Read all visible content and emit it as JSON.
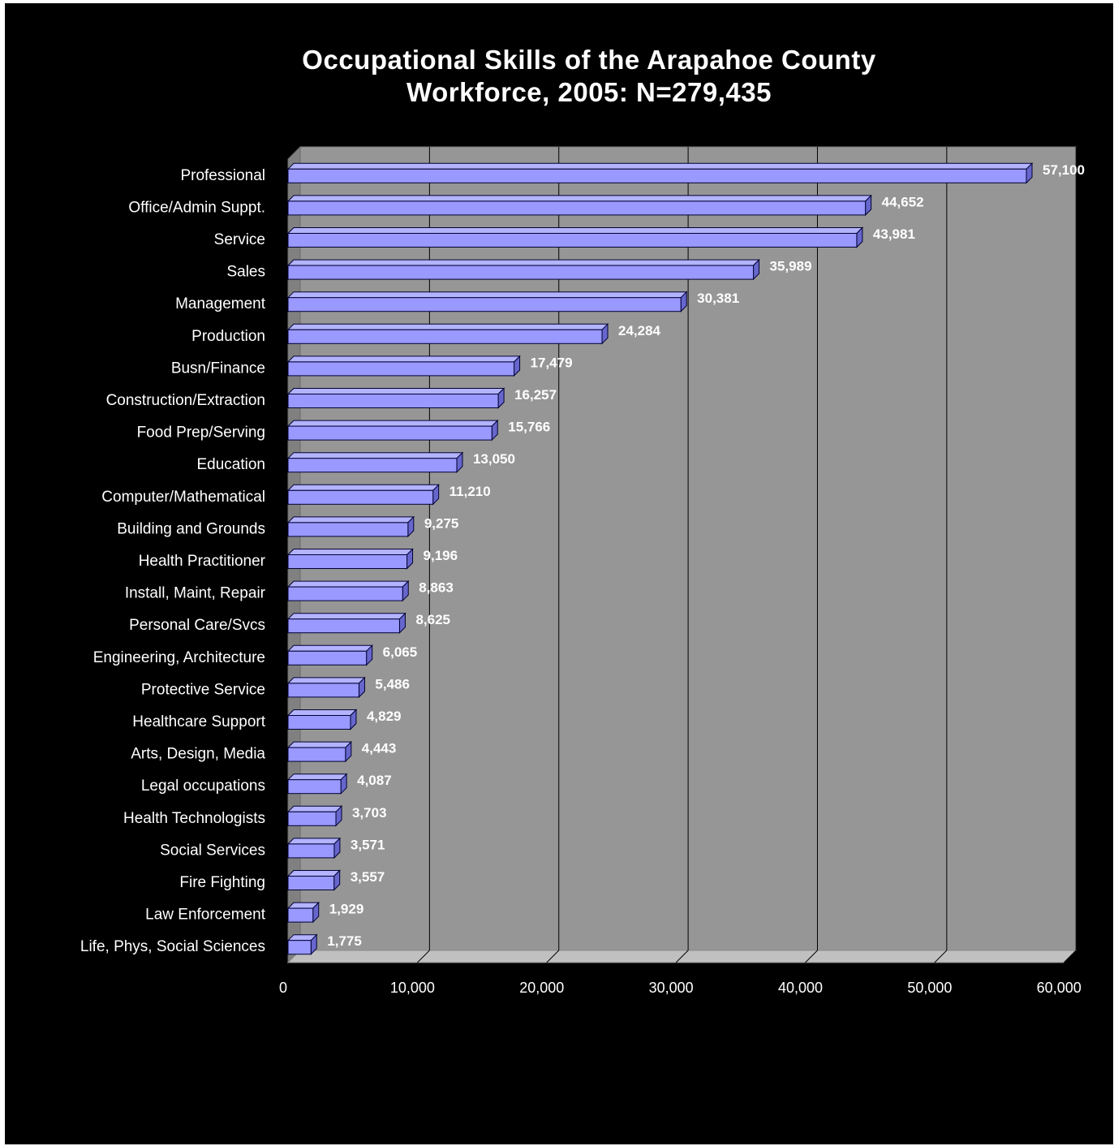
{
  "chart_data": {
    "type": "bar",
    "orientation": "horizontal",
    "title_lines": [
      "Occupational Skills of the Arapahoe County",
      "Workforce, 2005: N=279,435"
    ],
    "categories": [
      "Professional",
      "Office/Admin Suppt.",
      "Service",
      "Sales",
      "Management",
      "Production",
      "Busn/Finance",
      "Construction/Extraction",
      "Food Prep/Serving",
      "Education",
      "Computer/Mathematical",
      "Building and Grounds",
      "Health Practitioner",
      "Install, Maint, Repair",
      "Personal Care/Svcs",
      "Engineering, Architecture",
      "Protective Service",
      "Healthcare Support",
      "Arts, Design, Media",
      "Legal occupations",
      "Health Technologists",
      "Social Services",
      "Fire Fighting",
      "Law Enforcement",
      "Life, Phys, Social Sciences"
    ],
    "values": [
      57100,
      44652,
      43981,
      35989,
      30381,
      24284,
      17479,
      16257,
      15766,
      13050,
      11210,
      9275,
      9196,
      8863,
      8625,
      6065,
      5486,
      4829,
      4443,
      4087,
      3703,
      3571,
      3557,
      1929,
      1775
    ],
    "value_labels": [
      "57,100",
      "44,652",
      "43,981",
      "35,989",
      "30,381",
      "24,284",
      "17,479",
      "16,257",
      "15,766",
      "13,050",
      "11,210",
      "9,275",
      "9,196",
      "8,863",
      "8,625",
      "6,065",
      "5,486",
      "4,829",
      "4,443",
      "4,087",
      "3,703",
      "3,571",
      "3,557",
      "1,929",
      "1,775"
    ],
    "xlim": [
      0,
      60000
    ],
    "x_ticks": [
      0,
      10000,
      20000,
      30000,
      40000,
      50000,
      60000
    ],
    "x_tick_labels": [
      "0",
      "10,000",
      "20,000",
      "30,000",
      "40,000",
      "50,000",
      "60,000"
    ],
    "xlabel": "",
    "ylabel": "",
    "grid": true,
    "legend": "none",
    "style": "3d",
    "colors": {
      "background": "#000000",
      "plot_wall": "#969696",
      "floor": "#c0c0c0",
      "gridline": "#000000",
      "bar_face": "#9999ff",
      "bar_top": "#b3b3ff",
      "bar_side": "#6666cc",
      "bar_outline": "#000033",
      "text": "#ffffff"
    }
  }
}
